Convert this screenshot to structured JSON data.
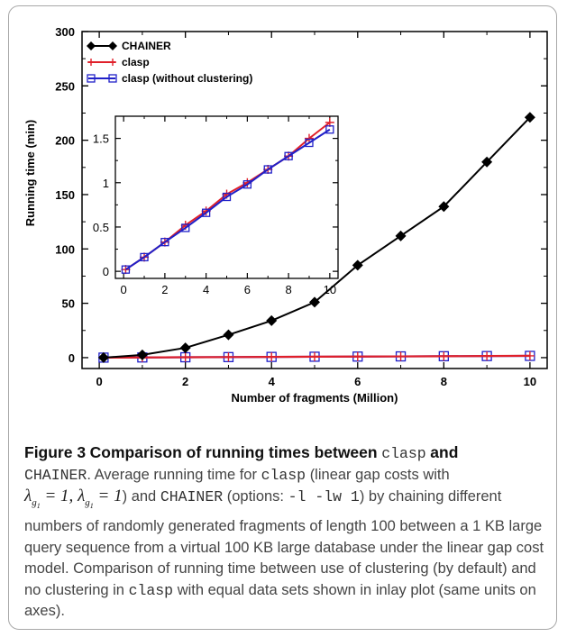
{
  "chart_data": [
    {
      "type": "line",
      "xlabel": "Number of fragments (Million)",
      "ylabel": "Running time (min)",
      "xlim": [
        -0.4,
        10.4
      ],
      "ylim": [
        -10,
        300
      ],
      "xticks": [
        "0",
        "2",
        "4",
        "6",
        "8",
        "10"
      ],
      "yticks": [
        "0",
        "50",
        "100",
        "150",
        "200",
        "250",
        "300"
      ],
      "legend_position": "top-left",
      "grid": false,
      "series": [
        {
          "name": "CHAINER",
          "color": "#000000",
          "marker": "diamond",
          "x": [
            0.1,
            1,
            2,
            3,
            4,
            5,
            6,
            7,
            8,
            9,
            10
          ],
          "y": [
            0,
            2.5,
            9,
            21,
            34,
            51,
            85,
            112,
            139,
            180,
            221
          ]
        },
        {
          "name": "clasp",
          "color": "#e0202a",
          "marker": "plus",
          "x": [
            0.1,
            1,
            2,
            3,
            4,
            5,
            6,
            7,
            8,
            9,
            10
          ],
          "y": [
            0.02,
            0.16,
            0.33,
            0.52,
            0.68,
            0.87,
            1.0,
            1.15,
            1.3,
            1.5,
            1.68
          ]
        },
        {
          "name": "clasp (without clustering)",
          "color": "#2020c8",
          "marker": "square",
          "x": [
            0.1,
            1,
            2,
            3,
            4,
            5,
            6,
            7,
            8,
            9,
            10
          ],
          "y": [
            0.02,
            0.16,
            0.33,
            0.49,
            0.66,
            0.84,
            0.98,
            1.15,
            1.3,
            1.45,
            1.6
          ]
        }
      ]
    },
    {
      "type": "line",
      "role": "inset",
      "xlim": [
        -0.4,
        10.4
      ],
      "ylim": [
        -0.08,
        1.75
      ],
      "xticks": [
        "0",
        "2",
        "4",
        "6",
        "8",
        "10"
      ],
      "yticks": [
        "0",
        "0.5",
        "1",
        "1.5"
      ],
      "series": [
        {
          "name": "clasp",
          "color": "#e0202a",
          "marker": "plus",
          "x": [
            0.1,
            1,
            2,
            3,
            4,
            5,
            6,
            7,
            8,
            9,
            10
          ],
          "y": [
            0.02,
            0.16,
            0.33,
            0.52,
            0.68,
            0.87,
            1.0,
            1.15,
            1.3,
            1.5,
            1.68
          ]
        },
        {
          "name": "clasp (without clustering)",
          "color": "#2020c8",
          "marker": "square",
          "x": [
            0.1,
            1,
            2,
            3,
            4,
            5,
            6,
            7,
            8,
            9,
            10
          ],
          "y": [
            0.02,
            0.16,
            0.33,
            0.49,
            0.66,
            0.84,
            0.98,
            1.15,
            1.3,
            1.45,
            1.6
          ]
        }
      ]
    }
  ],
  "caption": {
    "figure_label": "Figure 3",
    "title_pre": "Comparison of running times between",
    "title_code1": "clasp",
    "title_and": "and",
    "title_code2": "CHAINER",
    "dot": ".",
    "t1": "Average running time for",
    "code_clasp": "clasp",
    "t2": "(linear gap costs with",
    "math1_lambda": "λ",
    "math1_sub": "g",
    "math1_subsub": "1",
    "math1_eq": " = 1,",
    "math2_lambda": "λ",
    "math2_sub": "g",
    "math2_subsub": "1",
    "math2_eq": " = 1",
    "t3": ") and",
    "code_chainer": "CHAINER",
    "t4": "(options:",
    "code_options": "-l -lw 1",
    "t5": ") by chaining different numbers of randomly generated fragments of length 100 between a 1 KB large query sequence from a virtual 100 KB large database under the linear gap cost model. Comparison of running time between use of clustering (by default) and no clustering in",
    "code_clasp2": "clasp",
    "t6": "with equal data sets shown in inlay plot (same units on axes)."
  }
}
